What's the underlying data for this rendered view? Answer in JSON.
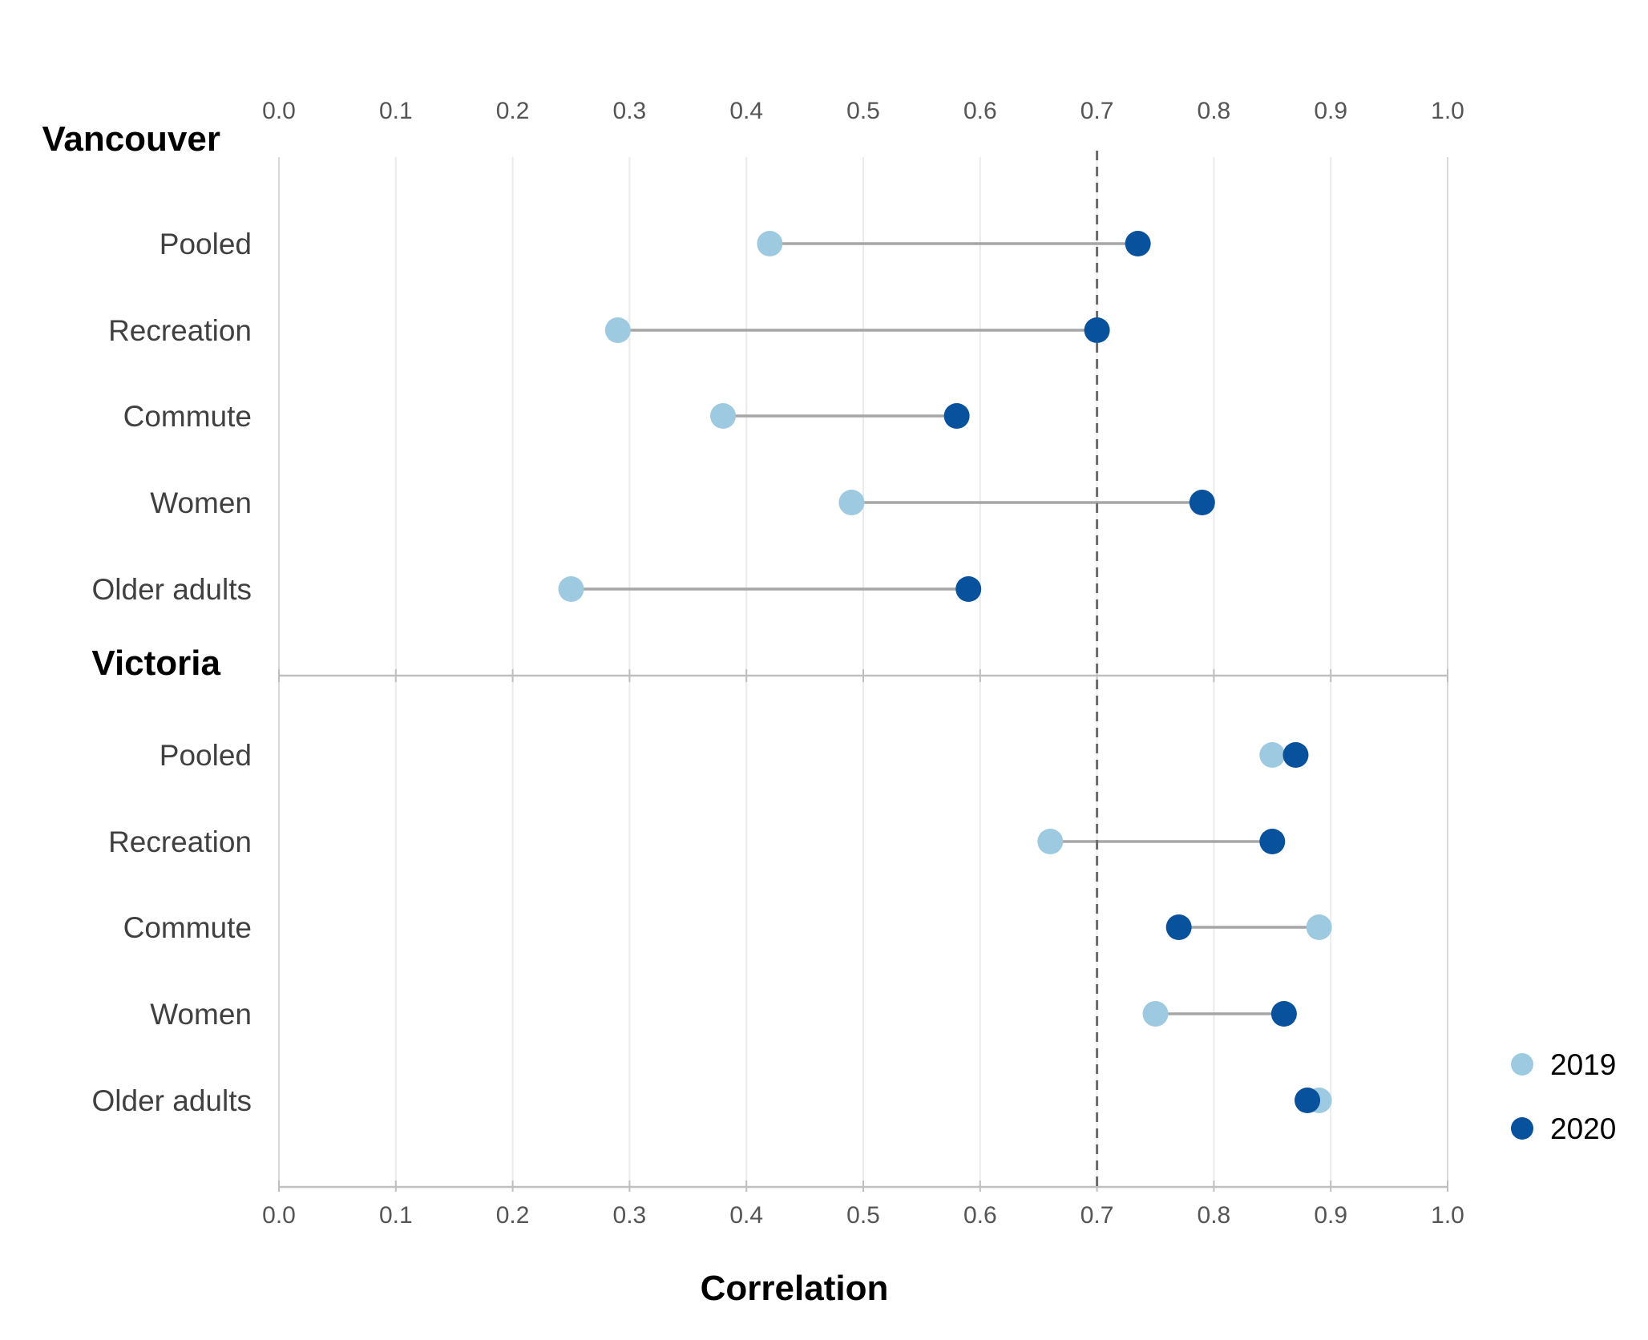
{
  "chart_data": {
    "type": "dumbbell",
    "xlabel": "Correlation",
    "xlim": [
      0,
      1
    ],
    "x_ticks": [
      "0.0",
      "0.1",
      "0.2",
      "0.3",
      "0.4",
      "0.5",
      "0.6",
      "0.7",
      "0.8",
      "0.9",
      "1.0"
    ],
    "reference_line": {
      "x": 0.7,
      "style": "dashed"
    },
    "series": [
      {
        "name": "2019",
        "color": "#9ecae1"
      },
      {
        "name": "2020",
        "color": "#08519c"
      }
    ],
    "legend": {
      "position": "bottom-right",
      "entries": [
        "2019",
        "2020"
      ]
    },
    "groups": [
      {
        "name": "Vancouver",
        "rows": [
          {
            "label": "Pooled",
            "v2019": 0.42,
            "v2020": 0.735
          },
          {
            "label": "Recreation",
            "v2019": 0.29,
            "v2020": 0.7
          },
          {
            "label": "Commute",
            "v2019": 0.38,
            "v2020": 0.58
          },
          {
            "label": "Women",
            "v2019": 0.49,
            "v2020": 0.79
          },
          {
            "label": "Older adults",
            "v2019": 0.25,
            "v2020": 0.59
          }
        ]
      },
      {
        "name": "Victoria",
        "rows": [
          {
            "label": "Pooled",
            "v2019": 0.85,
            "v2020": 0.87
          },
          {
            "label": "Recreation",
            "v2019": 0.66,
            "v2020": 0.85
          },
          {
            "label": "Commute",
            "v2019": 0.89,
            "v2020": 0.77
          },
          {
            "label": "Women",
            "v2019": 0.75,
            "v2020": 0.86
          },
          {
            "label": "Older adults",
            "v2019": 0.89,
            "v2020": 0.88
          }
        ]
      }
    ]
  }
}
